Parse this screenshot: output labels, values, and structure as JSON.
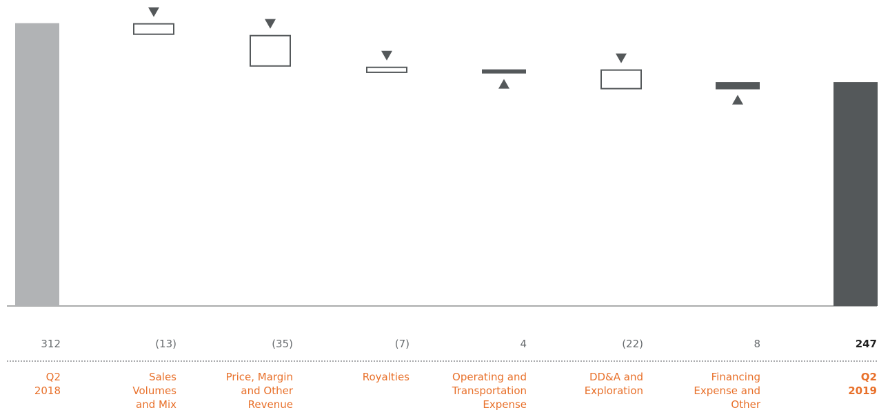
{
  "chart_data": {
    "type": "waterfall",
    "categories": [
      "Q2\n2018",
      "Sales\nVolumes\nand Mix",
      "Price, Margin\nand Other\nRevenue",
      "Royalties",
      "Operating and\nTransportation\nExpense",
      "DD&A and\nExploration",
      "Financing\nExpense and\nOther",
      "Q2\n2019"
    ],
    "values": [
      312,
      -13,
      -35,
      -7,
      4,
      -22,
      8,
      247
    ],
    "value_labels": [
      "312",
      "(13)",
      "(35)",
      "(7)",
      "4",
      "(22)",
      "8",
      "247"
    ],
    "kinds": [
      "total",
      "delta",
      "delta",
      "delta",
      "delta",
      "delta",
      "delta",
      "total"
    ],
    "ylim": [
      0,
      317
    ],
    "colors": {
      "start_total": "#b1b3b5",
      "end_total": "#54585a",
      "decrease_outline": "#54585a",
      "increase_fill": "#54585a",
      "category_text": "#e8702a",
      "value_text": "#666a6d"
    }
  }
}
